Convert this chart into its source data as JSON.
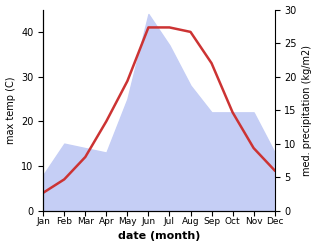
{
  "months": [
    "Jan",
    "Feb",
    "Mar",
    "Apr",
    "May",
    "Jun",
    "Jul",
    "Aug",
    "Sep",
    "Oct",
    "Nov",
    "Dec"
  ],
  "temp": [
    4,
    7,
    12,
    20,
    29,
    41,
    41,
    40,
    33,
    22,
    14,
    9
  ],
  "precip": [
    8,
    15,
    14,
    13,
    25,
    44,
    37,
    28,
    22,
    22,
    22,
    13
  ],
  "fill_color": "#c5cef5",
  "line_color": "#cc3333",
  "xlabel": "date (month)",
  "ylabel_left": "max temp (C)",
  "ylabel_right": "med. precipitation (kg/m2)",
  "ylim_left": [
    0,
    45
  ],
  "ylim_right": [
    0,
    30
  ],
  "yticks_left": [
    0,
    10,
    20,
    30,
    40
  ],
  "yticks_right": [
    0,
    5,
    10,
    15,
    20,
    25,
    30
  ],
  "bg_color": "#ffffff",
  "line_width": 1.8
}
